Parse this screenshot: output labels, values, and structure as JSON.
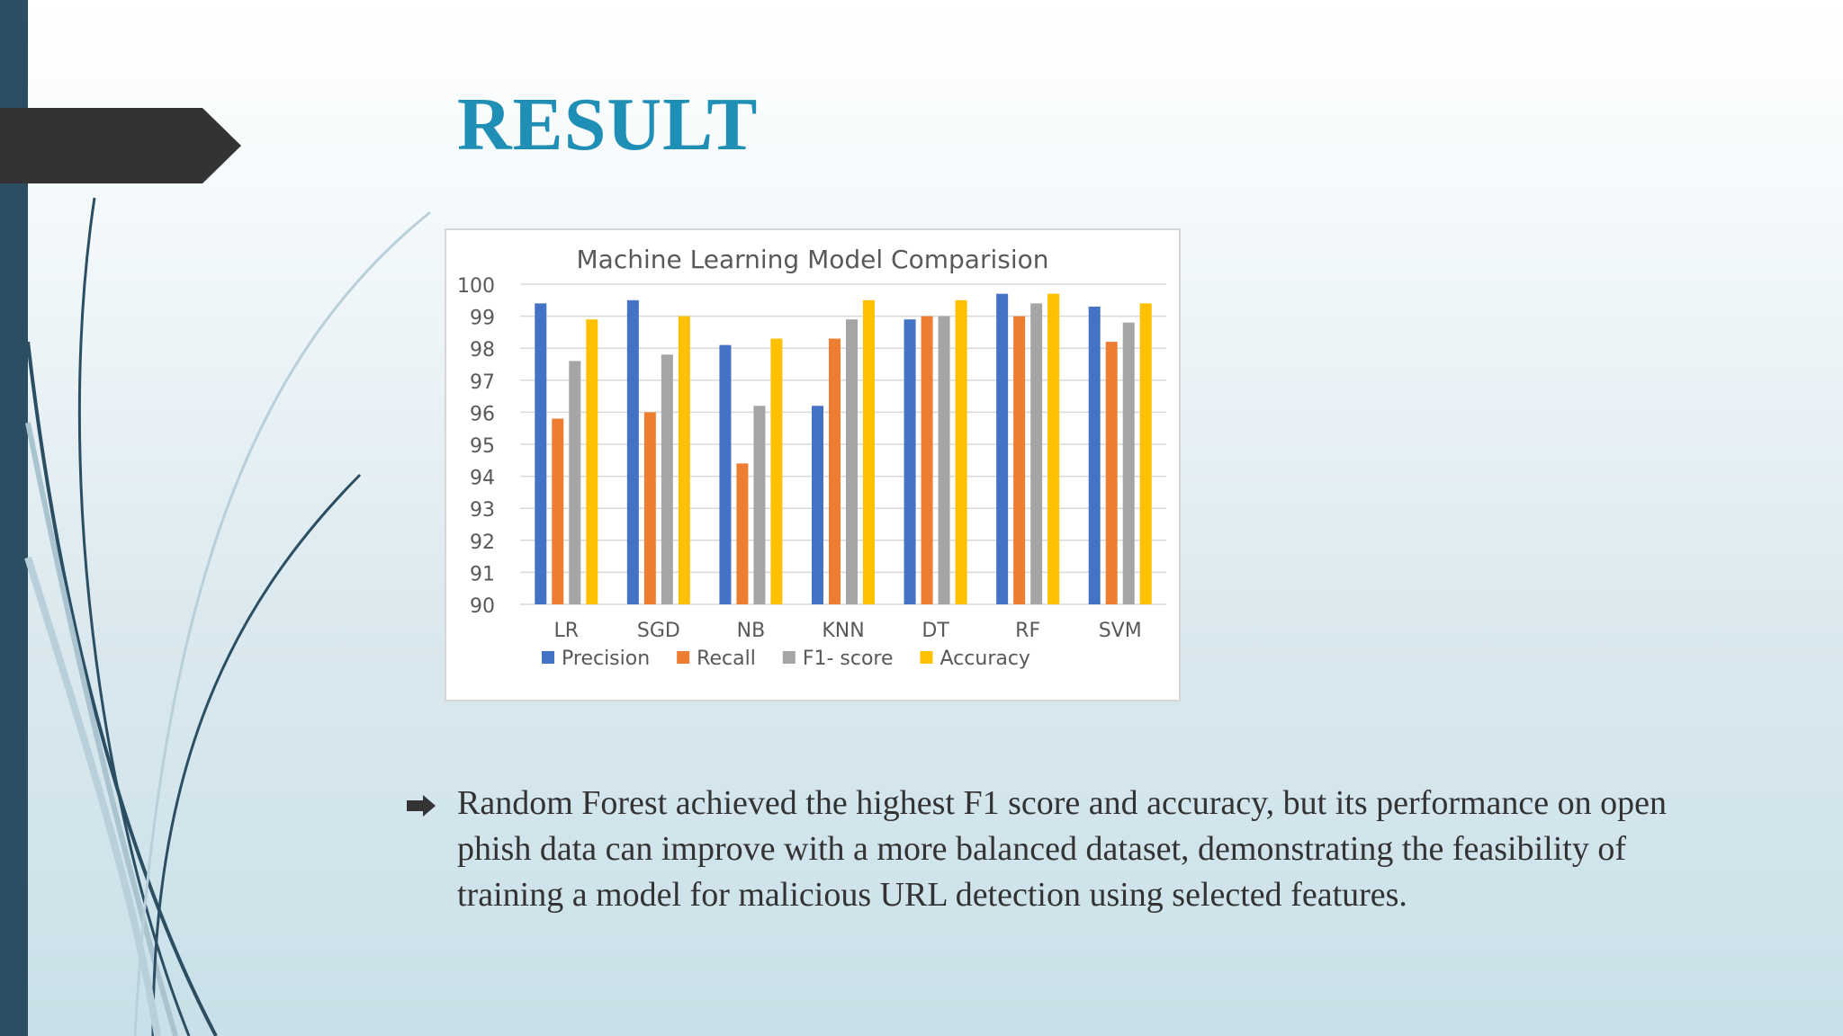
{
  "slide": {
    "title": "RESULT",
    "bullet_text": "Random Forest achieved the highest F1 score and accuracy, but its performance on open phish data can improve with a more balanced dataset, demonstrating the feasibility of training a model for malicious URL detection using selected features.",
    "bullet_icon": "arrow-bullet-icon",
    "colors": {
      "title": "#1f8fb6",
      "left_bar": "#2c4e63",
      "title_arrow": "#333333",
      "text": "#333333"
    }
  },
  "chart_data": {
    "type": "bar",
    "title": "Machine Learning Model Comparision",
    "categories": [
      "LR",
      "SGD",
      "NB",
      "KNN",
      "DT",
      "RF",
      "SVM"
    ],
    "series": [
      {
        "name": "Precision",
        "color": "#4472c4",
        "values": [
          99.4,
          99.5,
          98.1,
          96.2,
          98.9,
          99.7,
          99.3
        ]
      },
      {
        "name": "Recall",
        "color": "#ed7d31",
        "values": [
          95.8,
          96.0,
          94.4,
          98.3,
          99.0,
          99.0,
          98.2
        ]
      },
      {
        "name": "F1- score",
        "color": "#a5a5a5",
        "values": [
          97.6,
          97.8,
          96.2,
          98.9,
          99.0,
          99.4,
          98.8
        ]
      },
      {
        "name": "Accuracy",
        "color": "#ffc000",
        "values": [
          98.9,
          99.0,
          98.3,
          99.5,
          99.5,
          99.7,
          99.4
        ]
      }
    ],
    "ylim": [
      90,
      100
    ],
    "yticks": [
      "90",
      "91",
      "92",
      "93",
      "94",
      "95",
      "96",
      "97",
      "98",
      "99",
      "100"
    ],
    "xlabel": "",
    "ylabel": "",
    "grid": true,
    "legend": "bottom"
  }
}
